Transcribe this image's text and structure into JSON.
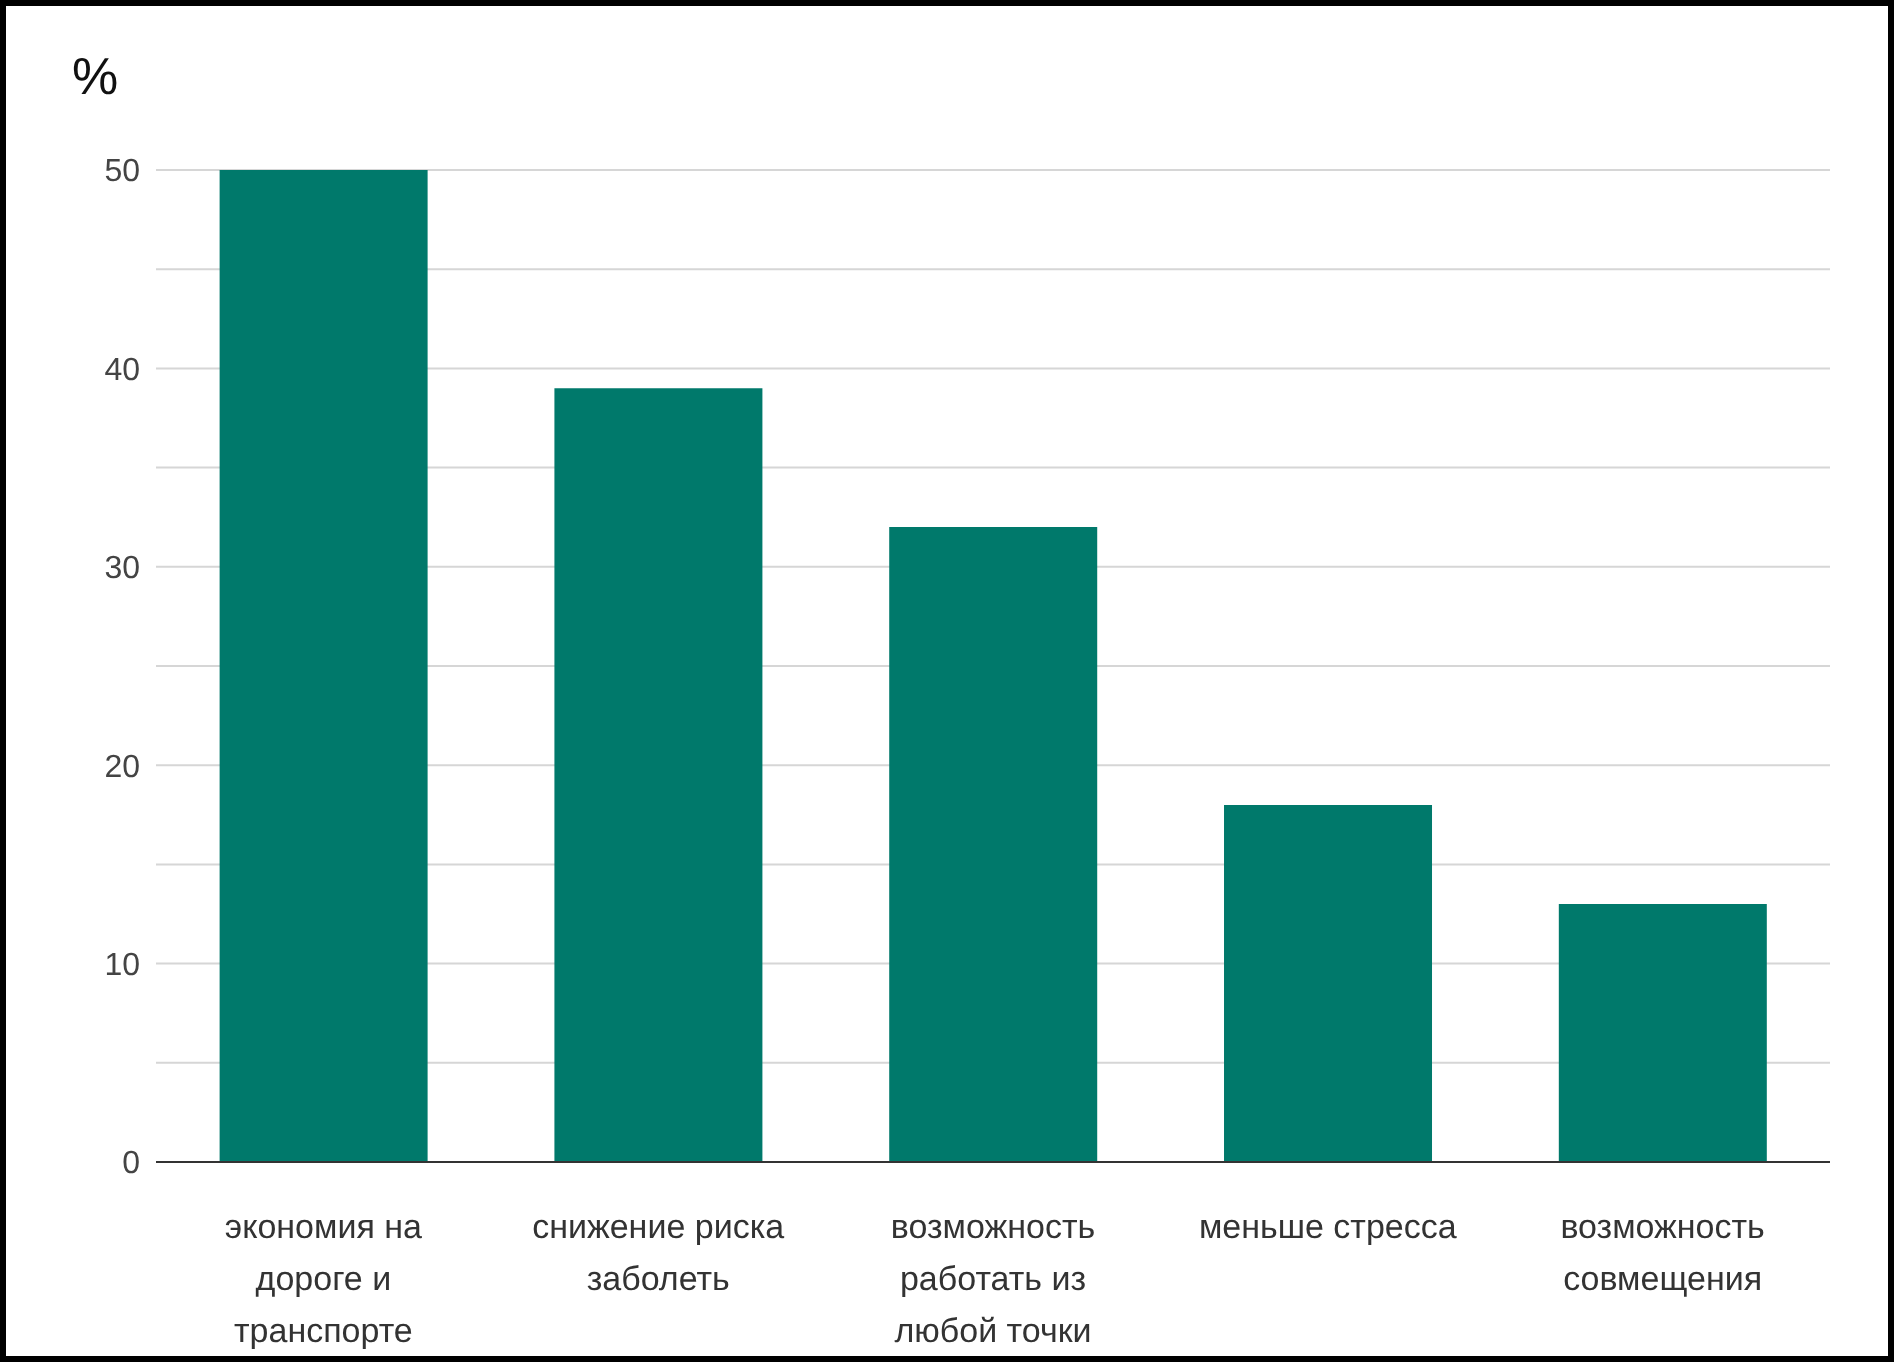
{
  "chart_data": {
    "type": "bar",
    "ylabel": "%",
    "categories": [
      "экономия на дороге и транспорте",
      "снижение риска заболеть",
      "возможность работать из любой точки",
      "меньше стресса",
      "возможность совмещения"
    ],
    "values": [
      50,
      39,
      32,
      18,
      13
    ],
    "color": "#00796b",
    "ylim": [
      0,
      50
    ],
    "yticks": [
      0,
      {
        "value": 5,
        "label": null
      },
      10,
      {
        "value": 15,
        "label": null
      },
      20,
      {
        "value": 25,
        "label": null
      },
      30,
      {
        "value": 35,
        "label": null
      },
      40,
      {
        "value": 45,
        "label": null
      },
      50
    ],
    "grid": "y",
    "legend": false
  }
}
